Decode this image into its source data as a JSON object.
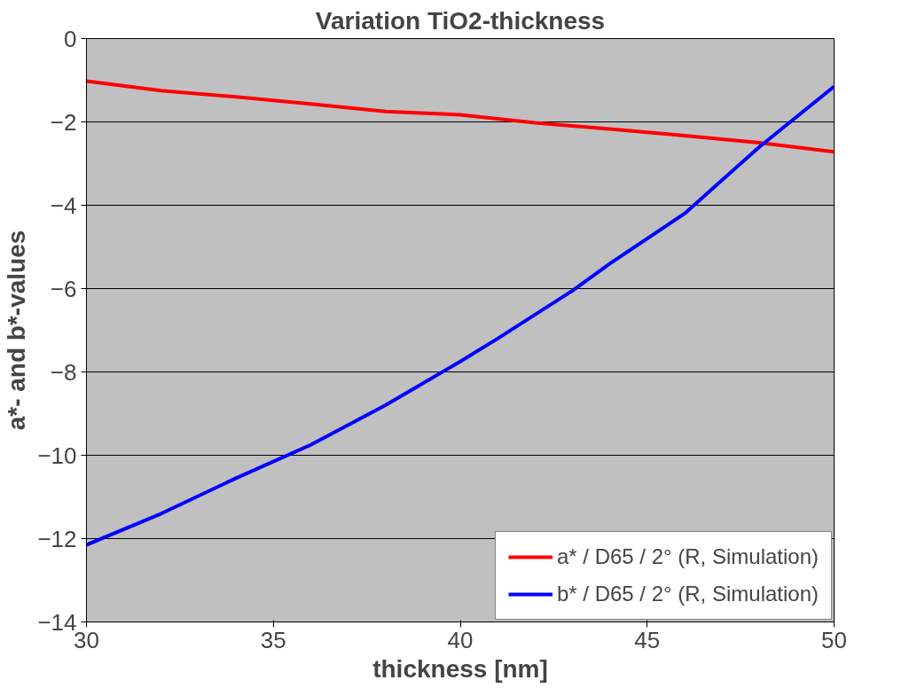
{
  "chart_data": {
    "type": "line",
    "title": "Variation TiO2-thickness",
    "xlabel": "thickness [nm]",
    "ylabel": "a*- and b*-values",
    "xlim": [
      30,
      50
    ],
    "xticks": [
      30,
      35,
      40,
      45,
      50
    ],
    "ylim": [
      -14,
      0
    ],
    "yticks": [
      -14,
      -12,
      -10,
      -8,
      -6,
      -4,
      -2,
      0
    ],
    "grid": "y",
    "legend": "bottom right",
    "marker": "none",
    "line_style": "solid",
    "series": [
      {
        "name": "a* / D65 / 2° (R, Simulation)",
        "color": "#ff0000",
        "x": [
          30,
          32,
          34,
          36,
          38,
          40,
          42,
          44,
          46,
          48,
          50
        ],
        "values": [
          -1.02,
          -1.25,
          -1.4,
          -1.57,
          -1.75,
          -1.83,
          -2.02,
          -2.17,
          -2.33,
          -2.5,
          -2.72
        ]
      },
      {
        "name": "b* / D65 / 2° (R, Simulation)",
        "color": "#0000ff",
        "x": [
          30,
          32,
          34,
          36,
          38,
          40,
          41,
          43,
          44,
          46,
          47,
          48,
          50
        ],
        "values": [
          -12.15,
          -11.4,
          -10.55,
          -9.75,
          -8.8,
          -7.75,
          -7.2,
          -6.05,
          -5.4,
          -4.2,
          -3.4,
          -2.6,
          -1.15
        ]
      }
    ]
  }
}
